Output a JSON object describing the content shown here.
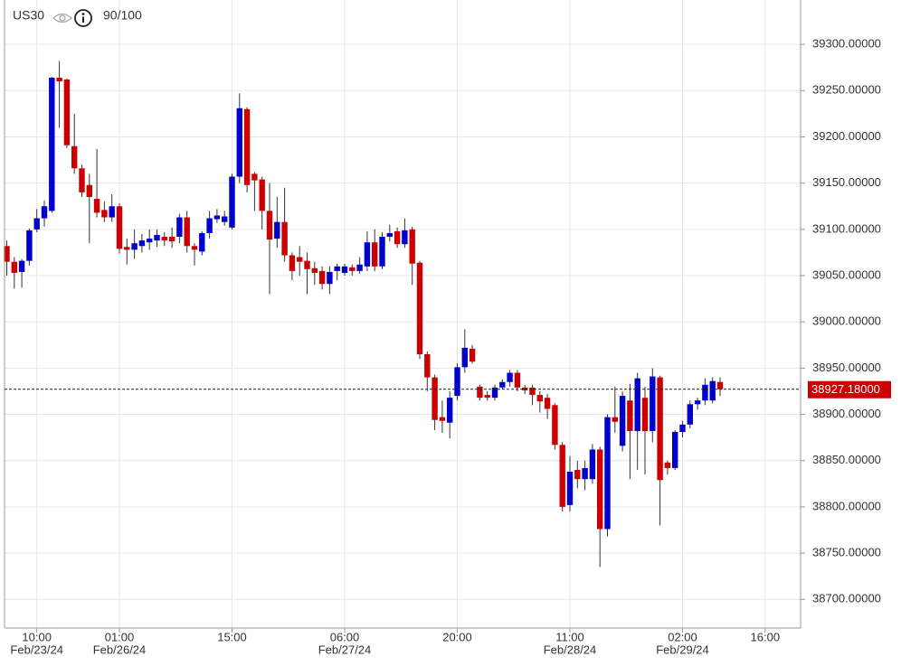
{
  "chart_data": {
    "type": "candlestick",
    "title": "US30",
    "subtitle": "90/100",
    "categories": [
      null,
      null,
      null,
      null,
      "10:00",
      null,
      null,
      null,
      null,
      null,
      null,
      null,
      null,
      null,
      null,
      "01:00",
      null,
      null,
      null,
      null,
      null,
      null,
      null,
      null,
      null,
      null,
      null,
      null,
      null,
      null,
      "15:00",
      null,
      null,
      null,
      null,
      null,
      null,
      null,
      null,
      null,
      null,
      null,
      null,
      null,
      null,
      "06:00",
      null,
      null,
      null,
      null,
      null,
      null,
      null,
      null,
      null,
      null,
      null,
      null,
      null,
      null,
      "20:00",
      null,
      null,
      null,
      null,
      null,
      null,
      null,
      null,
      null,
      null,
      null,
      null,
      null,
      null,
      "11:00",
      null,
      null,
      null,
      null,
      null,
      null,
      null,
      null,
      null,
      null,
      null,
      null,
      null,
      null,
      "02:00",
      null,
      null,
      null,
      null,
      null,
      null,
      null,
      null,
      null,
      null,
      "16:00"
    ],
    "date_labels": [
      null,
      null,
      null,
      null,
      "Feb/23/24",
      null,
      null,
      null,
      null,
      null,
      null,
      null,
      null,
      null,
      null,
      "Feb/26/24",
      null,
      null,
      null,
      null,
      null,
      null,
      null,
      null,
      null,
      null,
      null,
      null,
      null,
      null,
      null,
      null,
      null,
      null,
      null,
      null,
      null,
      null,
      null,
      null,
      null,
      null,
      null,
      null,
      null,
      "Feb/27/24",
      null,
      null,
      null,
      null,
      null,
      null,
      null,
      null,
      null,
      null,
      null,
      null,
      null,
      null,
      null,
      null,
      null,
      null,
      null,
      null,
      null,
      null,
      null,
      null,
      null,
      null,
      null,
      null,
      null,
      "Feb/28/24",
      null,
      null,
      null,
      null,
      null,
      null,
      null,
      null,
      null,
      null,
      null,
      null,
      null,
      null,
      "Feb/29/24",
      null,
      null,
      null,
      null,
      null,
      null,
      null,
      null,
      null,
      null,
      null
    ],
    "open": [
      39082,
      39065,
      39054,
      39066,
      39100,
      39112,
      39120,
      39264,
      39262,
      39190,
      39166,
      39148,
      39133,
      39121,
      39113,
      39125,
      39081,
      39078,
      39082,
      39086,
      39088,
      39092,
      39092,
      39092,
      39113,
      39082,
      39076,
      39096,
      39111,
      39108,
      39102,
      39157,
      39230,
      39160,
      39154,
      39120,
      39090,
      39108,
      39072,
      39070,
      39066,
      39058,
      39055,
      39041,
      39055,
      39053,
      39059,
      39055,
      39060,
      39086,
      39060,
      39092,
      39098,
      39084,
      39100,
      39064,
      38965,
      38940,
      38897,
      38891,
      38920,
      38951,
      38971,
      38930,
      38921,
      38918,
      38929,
      38935,
      38945,
      38929,
      38929,
      38921,
      38918,
      38910,
      38867,
      38802,
      38840,
      38830,
      38830,
      38862,
      38776,
      38897,
      38866,
      38915,
      38882,
      38918,
      38882,
      38940,
      38848,
      38842,
      38881,
      38889,
      38911,
      38915,
      38915,
      38935,
      null,
      null,
      null,
      null,
      null,
      null
    ],
    "high": [
      39088,
      39070,
      39068,
      39101,
      39122,
      39131,
      39265,
      39282,
      39263,
      39225,
      39170,
      39160,
      39187,
      39130,
      39138,
      39128,
      39090,
      39100,
      39095,
      39100,
      39100,
      39097,
      39102,
      39117,
      39120,
      39085,
      39098,
      39120,
      39122,
      39120,
      39160,
      39247,
      39232,
      39162,
      39157,
      39150,
      39135,
      39145,
      39075,
      39082,
      39075,
      39065,
      39060,
      39060,
      39063,
      39063,
      39062,
      39070,
      39098,
      39100,
      39097,
      39105,
      39102,
      39112,
      39103,
      39066,
      38968,
      38943,
      38915,
      38925,
      38955,
      38992,
      38975,
      38932,
      38925,
      38932,
      38938,
      38948,
      38948,
      38932,
      38932,
      38925,
      38922,
      38912,
      38870,
      38855,
      38850,
      38850,
      38868,
      38865,
      38900,
      38930,
      38925,
      38933,
      38945,
      38930,
      38950,
      38942,
      38850,
      38883,
      38893,
      38915,
      38918,
      38939,
      38940,
      38940,
      null,
      null,
      null,
      null,
      null,
      null
    ],
    "low": [
      39050,
      39036,
      39037,
      39061,
      39097,
      39103,
      39118,
      39210,
      39188,
      39160,
      39135,
      39085,
      39113,
      39108,
      39108,
      39074,
      39062,
      39068,
      39075,
      39078,
      39081,
      39082,
      39080,
      39085,
      39075,
      39061,
      39072,
      39090,
      39107,
      39104,
      39100,
      39150,
      39140,
      39120,
      39100,
      39030,
      39080,
      39065,
      39045,
      39050,
      39030,
      39040,
      39035,
      39030,
      39045,
      39050,
      39050,
      39052,
      39055,
      39055,
      39057,
      39087,
      39080,
      39080,
      39040,
      38960,
      38925,
      38883,
      38880,
      38874,
      38915,
      38945,
      38955,
      38915,
      38915,
      38915,
      38927,
      38930,
      38925,
      38922,
      38910,
      38902,
      38895,
      38862,
      38795,
      38795,
      38820,
      38818,
      38825,
      38735,
      38768,
      38880,
      38860,
      38830,
      38840,
      38835,
      38870,
      38780,
      38835,
      38840,
      38875,
      38885,
      38905,
      38910,
      38912,
      38920,
      null,
      null,
      null,
      null,
      null,
      null
    ],
    "close": [
      39065,
      39053,
      39066,
      39099,
      39112,
      39125,
      39264,
      39260,
      39191,
      39166,
      39140,
      39135,
      39118,
      39113,
      39125,
      39079,
      39078,
      39085,
      39088,
      39090,
      39094,
      39088,
      39087,
      39113,
      39082,
      39078,
      39096,
      39112,
      39115,
      39114,
      39157,
      39231,
      39148,
      39153,
      39120,
      39089,
      39108,
      39072,
      39055,
      39065,
      39057,
      39053,
      39041,
      39054,
      39060,
      39060,
      39055,
      39062,
      39086,
      39060,
      39092,
      39096,
      39084,
      39099,
      39063,
      38965,
      38940,
      38894,
      38893,
      38918,
      38951,
      38972,
      38957,
      38918,
      38918,
      38929,
      38935,
      38945,
      38929,
      38926,
      38921,
      38914,
      38906,
      38867,
      38800,
      38838,
      38830,
      38842,
      38862,
      38776,
      38897,
      38892,
      38920,
      38882,
      38939,
      38882,
      38941,
      38829,
      38842,
      38881,
      38889,
      38911,
      38915,
      38932,
      38936,
      38927.18,
      null,
      null,
      null,
      null,
      null,
      null
    ],
    "up_color": "#0000cc",
    "down_color": "#cc0000",
    "ylim": [
      38669,
      39348
    ],
    "yticks": [
      {
        "value": 38700,
        "label": "38700.00000"
      },
      {
        "value": 38750,
        "label": "38750.00000"
      },
      {
        "value": 38800,
        "label": "38800.00000"
      },
      {
        "value": 38850,
        "label": "38850.00000"
      },
      {
        "value": 38900,
        "label": "38900.00000"
      },
      {
        "value": 38950,
        "label": "38950.00000"
      },
      {
        "value": 39000,
        "label": "39000.00000"
      },
      {
        "value": 39050,
        "label": "39050.00000"
      },
      {
        "value": 39100,
        "label": "39100.00000"
      },
      {
        "value": 39150,
        "label": "39150.00000"
      },
      {
        "value": 39200,
        "label": "39200.00000"
      },
      {
        "value": 39250,
        "label": "39250.00000"
      },
      {
        "value": 39300,
        "label": "39300.00000"
      }
    ],
    "last_price": {
      "value": 38927.18,
      "label": "38927.18000"
    },
    "grid": true
  }
}
